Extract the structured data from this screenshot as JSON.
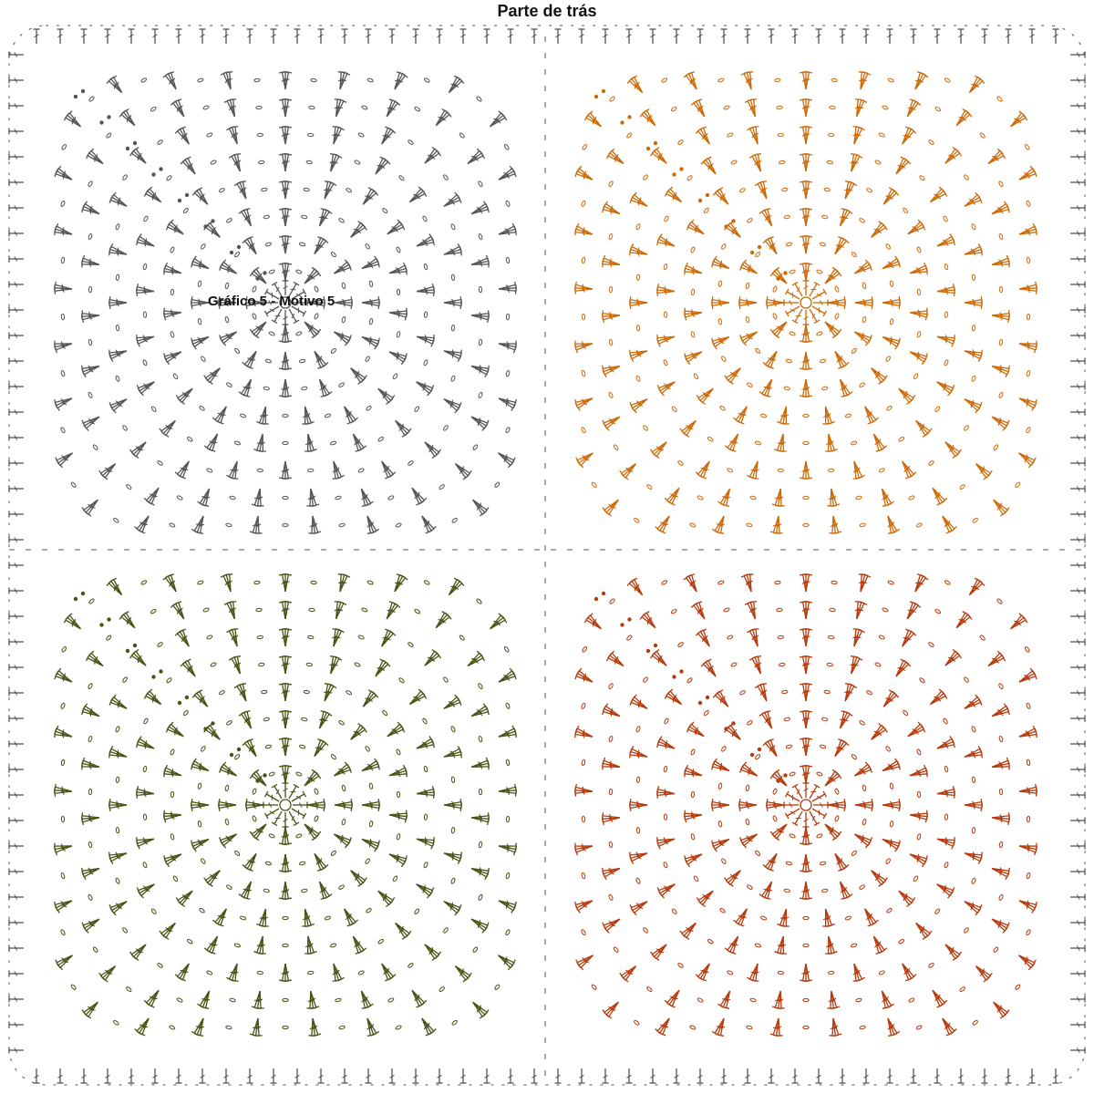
{
  "title": "Parte de trás",
  "chart_label": "Gráfico 5 - Motivo 5",
  "motifs": [
    {
      "position": "top-left",
      "color": "#555555"
    },
    {
      "position": "top-right",
      "color": "#cc6a0a"
    },
    {
      "position": "bottom-left",
      "color": "#4a5216"
    },
    {
      "position": "bottom-right",
      "color": "#b53a0c"
    }
  ],
  "border_color": "#555555",
  "accent_color": "#111111"
}
